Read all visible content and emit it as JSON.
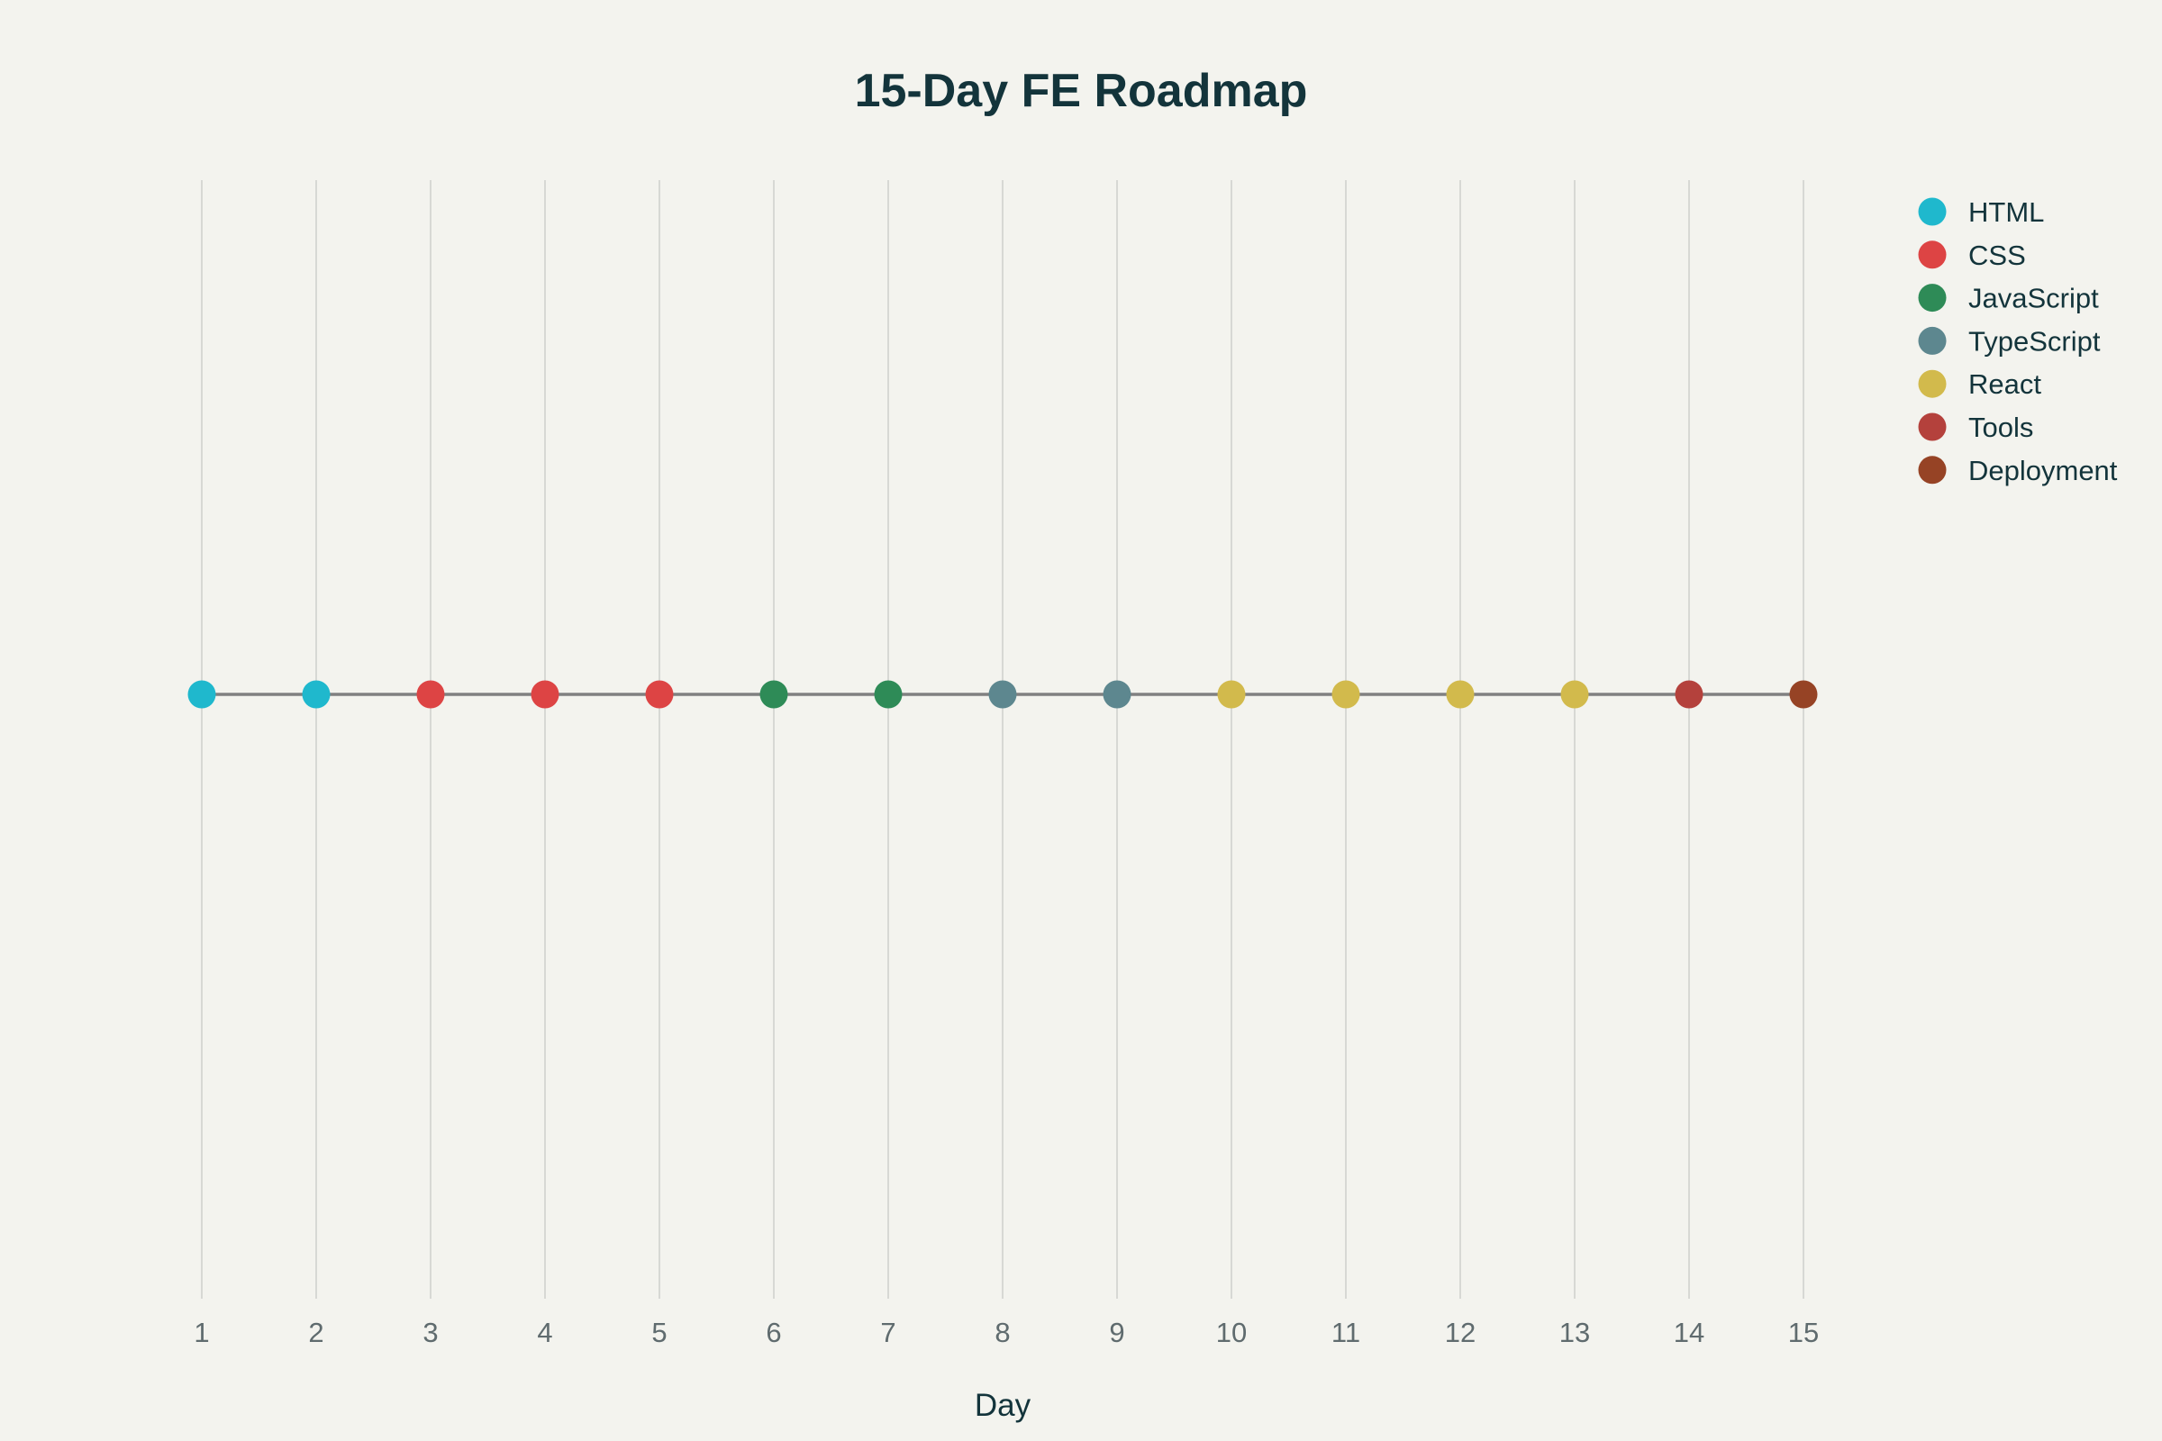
{
  "chart_data": {
    "type": "scatter",
    "title": "15-Day FE Roadmap",
    "xlabel": "Day",
    "ylabel": "",
    "xlim": [
      1,
      15
    ],
    "x_ticks": [
      "1",
      "2",
      "3",
      "4",
      "5",
      "6",
      "7",
      "8",
      "9",
      "10",
      "11",
      "12",
      "13",
      "14",
      "15"
    ],
    "grid": "vertical",
    "legend_position": "top-right",
    "connector_line_color": "#808080",
    "series": [
      {
        "name": "HTML",
        "color": "#1fb8cd",
        "x": [
          1,
          2
        ],
        "y": [
          0,
          0
        ]
      },
      {
        "name": "CSS",
        "color": "#dd4444",
        "x": [
          3,
          4,
          5
        ],
        "y": [
          0,
          0,
          0
        ]
      },
      {
        "name": "JavaScript",
        "color": "#2e8b57",
        "x": [
          6,
          7
        ],
        "y": [
          0,
          0
        ]
      },
      {
        "name": "TypeScript",
        "color": "#5d878f",
        "x": [
          8,
          9
        ],
        "y": [
          0,
          0
        ]
      },
      {
        "name": "React",
        "color": "#d2ba4c",
        "x": [
          10,
          11,
          12,
          13
        ],
        "y": [
          0,
          0,
          0,
          0
        ]
      },
      {
        "name": "Tools",
        "color": "#b4413c",
        "x": [
          14
        ],
        "y": [
          0
        ]
      },
      {
        "name": "Deployment",
        "color": "#964325",
        "x": [
          15
        ],
        "y": [
          0
        ]
      }
    ]
  }
}
